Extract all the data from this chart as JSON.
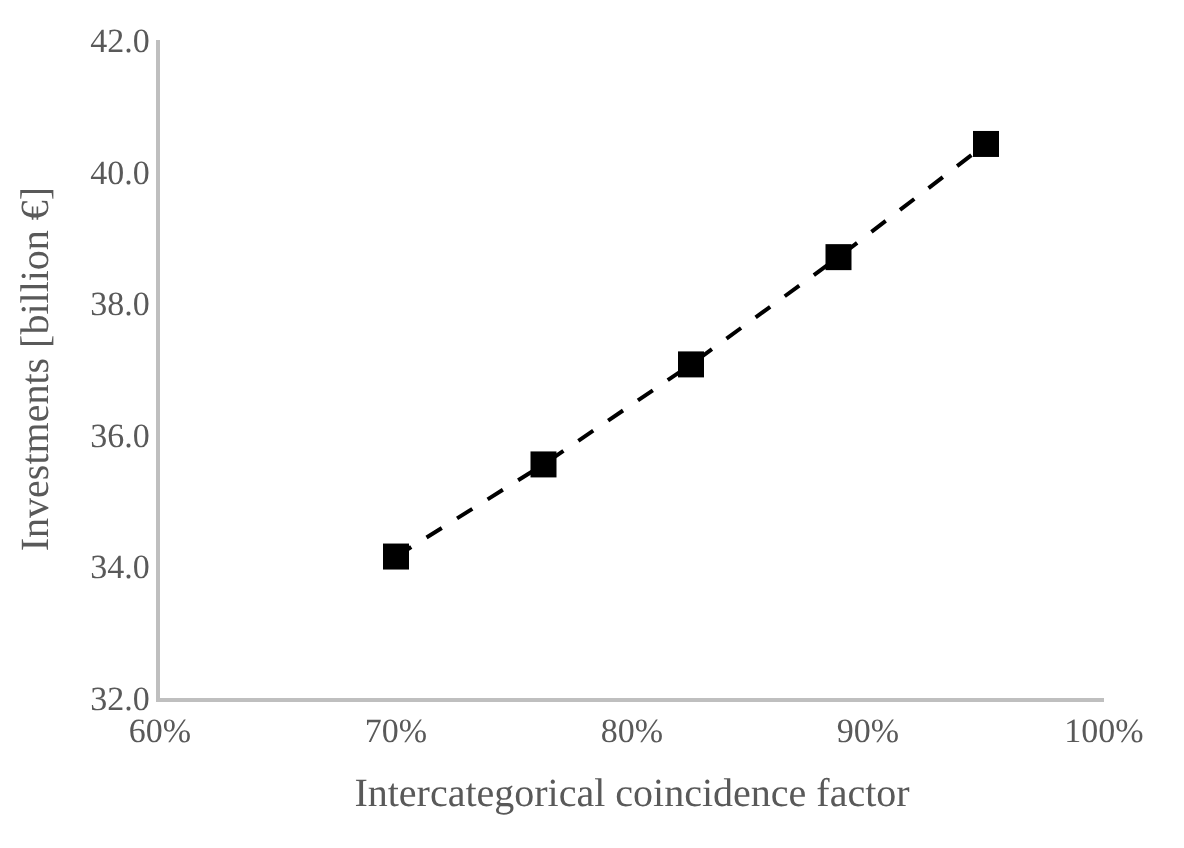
{
  "chart_data": {
    "type": "line",
    "xlabel": "Intercategorical coincidence factor",
    "ylabel": "Investments [billion €]",
    "x": [
      70,
      76.25,
      82.5,
      88.75,
      95
    ],
    "series": [
      {
        "color": "#000000",
        "values": [
          34.15,
          35.55,
          37.07,
          38.7,
          40.42
        ]
      }
    ],
    "xlim": [
      60,
      100
    ],
    "xticks": [
      {
        "value": 60,
        "label": "60%"
      },
      {
        "value": 70,
        "label": "70%"
      },
      {
        "value": 80,
        "label": "80%"
      },
      {
        "value": 90,
        "label": "90%"
      },
      {
        "value": 100,
        "label": "100%"
      }
    ],
    "ylim": [
      32,
      42
    ],
    "yticks": [
      {
        "value": 32,
        "label": "32.0"
      },
      {
        "value": 34,
        "label": "34.0"
      },
      {
        "value": 36,
        "label": "36.0"
      },
      {
        "value": 38,
        "label": "38.0"
      },
      {
        "value": 40,
        "label": "40.0"
      },
      {
        "value": 42,
        "label": "42.0"
      }
    ],
    "grid": false,
    "marker": "square",
    "line_style": "dashed"
  }
}
